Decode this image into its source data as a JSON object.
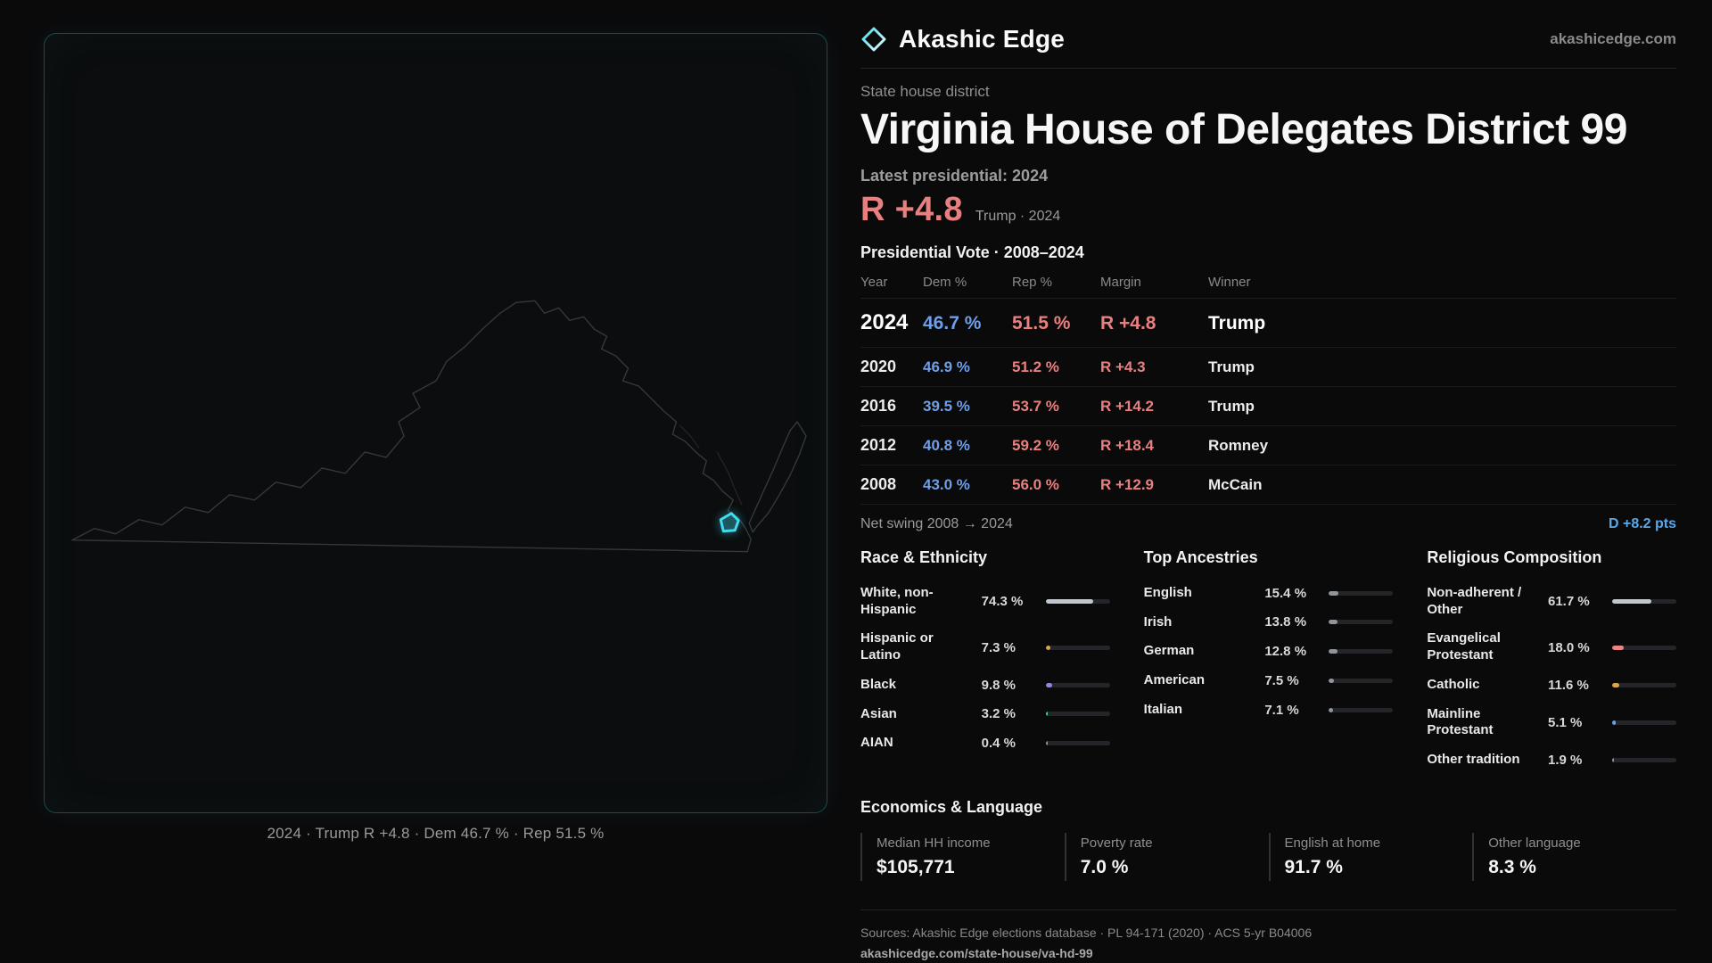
{
  "brand": {
    "name": "Akashic Edge",
    "site": "akashicedge.com"
  },
  "map_panel": {
    "caption": "2024 · Trump R +4.8 · Dem 46.7 % · Rep 51.5 %"
  },
  "district": {
    "kicker": "State house district",
    "title": "Virginia House of Delegates District 99",
    "latest_label": "Latest presidential: 2024",
    "headline_margin": "R +4.8",
    "headline_context": "Trump · 2024"
  },
  "vote_table": {
    "title": "Presidential Vote · 2008–2024",
    "columns": {
      "year": "Year",
      "dem": "Dem %",
      "rep": "Rep %",
      "margin": "Margin",
      "winner": "Winner"
    },
    "rows": [
      {
        "year": "2024",
        "dem": "46.7 %",
        "rep": "51.5 %",
        "margin": "R +4.8",
        "winner": "Trump"
      },
      {
        "year": "2020",
        "dem": "46.9 %",
        "rep": "51.2 %",
        "margin": "R +4.3",
        "winner": "Trump"
      },
      {
        "year": "2016",
        "dem": "39.5 %",
        "rep": "53.7 %",
        "margin": "R +14.2",
        "winner": "Trump"
      },
      {
        "year": "2012",
        "dem": "40.8 %",
        "rep": "59.2 %",
        "margin": "R +18.4",
        "winner": "Romney"
      },
      {
        "year": "2008",
        "dem": "43.0 %",
        "rep": "56.0 %",
        "margin": "R +12.9",
        "winner": "McCain"
      }
    ]
  },
  "net_swing": {
    "label": "Net swing 2008 → 2024",
    "value": "D +8.2 pts"
  },
  "demographics": [
    {
      "title": "Race & Ethnicity",
      "items": [
        {
          "label": "White, non-Hispanic",
          "value": "74.3 %",
          "pct": 74.3,
          "color": "#c2c7cd"
        },
        {
          "label": "Hispanic or Latino",
          "value": "7.3 %",
          "pct": 7.3,
          "color": "#d9a648"
        },
        {
          "label": "Black",
          "value": "9.8 %",
          "pct": 9.8,
          "color": "#8d87dd"
        },
        {
          "label": "Asian",
          "value": "3.2 %",
          "pct": 3.2,
          "color": "#34d399"
        },
        {
          "label": "AIAN",
          "value": "0.4 %",
          "pct": 0.4,
          "color": "#8f959b"
        }
      ]
    },
    {
      "title": "Top Ancestries",
      "items": [
        {
          "label": "English",
          "value": "15.4 %",
          "pct": 15.4,
          "color": "#8f959b"
        },
        {
          "label": "Irish",
          "value": "13.8 %",
          "pct": 13.8,
          "color": "#8f959b"
        },
        {
          "label": "German",
          "value": "12.8 %",
          "pct": 12.8,
          "color": "#8f959b"
        },
        {
          "label": "American",
          "value": "7.5 %",
          "pct": 7.5,
          "color": "#8f959b"
        },
        {
          "label": "Italian",
          "value": "7.1 %",
          "pct": 7.1,
          "color": "#8f959b"
        }
      ]
    },
    {
      "title": "Religious Composition",
      "items": [
        {
          "label": "Non-adherent / Other",
          "value": "61.7 %",
          "pct": 61.7,
          "color": "#c2c7cd"
        },
        {
          "label": "Evangelical Protestant",
          "value": "18.0 %",
          "pct": 18.0,
          "color": "#e98585"
        },
        {
          "label": "Catholic",
          "value": "11.6 %",
          "pct": 11.6,
          "color": "#d9a648"
        },
        {
          "label": "Mainline Protestant",
          "value": "5.1 %",
          "pct": 5.1,
          "color": "#6f9fe8"
        },
        {
          "label": "Other tradition",
          "value": "1.9 %",
          "pct": 1.9,
          "color": "#8f959b"
        }
      ]
    }
  ],
  "economics": {
    "title": "Economics & Language",
    "stats": [
      {
        "label": "Median HH income",
        "value": "$105,771"
      },
      {
        "label": "Poverty rate",
        "value": "7.0 %"
      },
      {
        "label": "English at home",
        "value": "91.7 %"
      },
      {
        "label": "Other language",
        "value": "8.3 %"
      }
    ]
  },
  "footer": {
    "sources": "Sources: Akashic Edge elections database · PL 94-171 (2020) · ACS 5-yr B04006",
    "permalink": "akashicedge.com/state-house/va-hd-99"
  },
  "colors": {
    "dem": "#6f9fe8",
    "rep": "#e98080",
    "swing": "#58a8ea",
    "accent": "#3fdcf0"
  }
}
